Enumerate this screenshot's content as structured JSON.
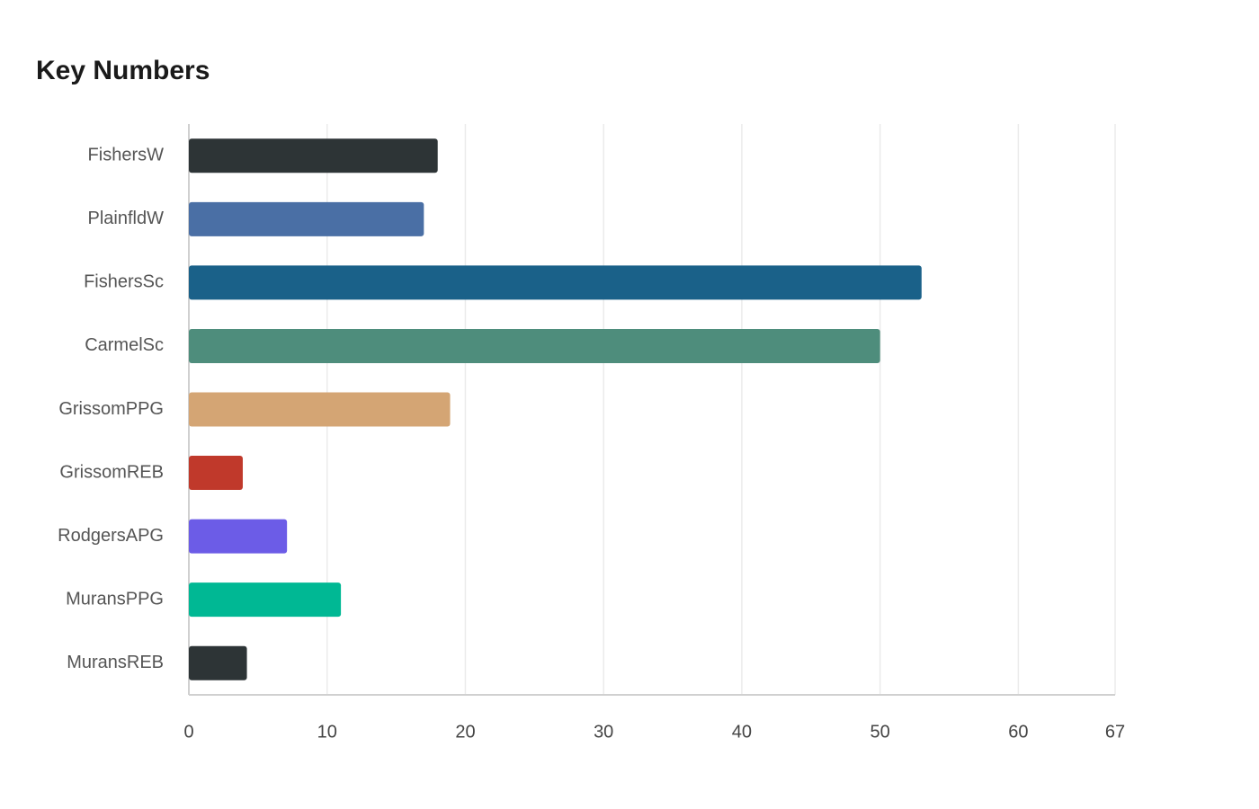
{
  "chart_data": {
    "type": "bar",
    "orientation": "horizontal",
    "title": "Key Numbers",
    "categories": [
      "FishersW",
      "PlainfldW",
      "FishersSc",
      "CarmelSc",
      "GrissomPPG",
      "GrissomREB",
      "RodgersAPG",
      "MuransPPG",
      "MuransREB"
    ],
    "values": [
      18,
      17,
      53,
      50,
      18.9,
      3.9,
      7.1,
      11,
      4.2
    ],
    "colors": [
      "#2d3436",
      "#4a6fa5",
      "#1a6189",
      "#4e8d7c",
      "#d4a574",
      "#c0392b",
      "#6c5ce7",
      "#00b894",
      "#2d3436"
    ],
    "xlim": [
      0,
      67
    ],
    "xticks": [
      0,
      10,
      20,
      30,
      40,
      50,
      60,
      67
    ],
    "grid": true
  }
}
